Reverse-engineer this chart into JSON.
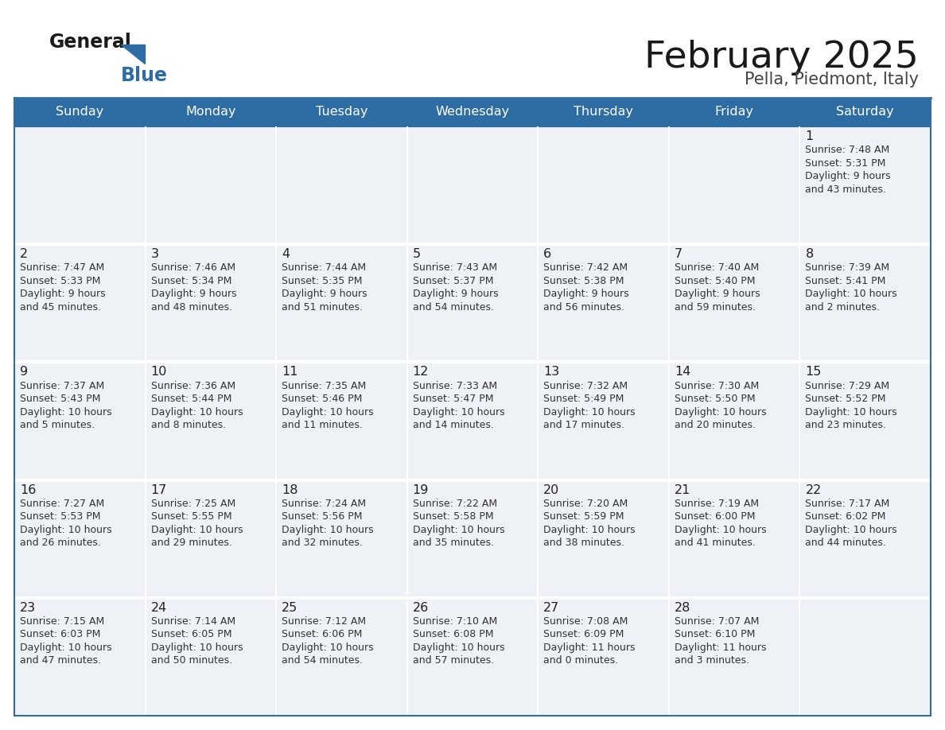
{
  "title": "February 2025",
  "subtitle": "Pella, Piedmont, Italy",
  "header_color": "#2e6da4",
  "header_text_color": "#ffffff",
  "cell_bg_color": "#eef1f5",
  "border_color": "#2e6da4",
  "text_color": "#333333",
  "days_of_week": [
    "Sunday",
    "Monday",
    "Tuesday",
    "Wednesday",
    "Thursday",
    "Friday",
    "Saturday"
  ],
  "calendar_data": [
    [
      null,
      null,
      null,
      null,
      null,
      null,
      {
        "day": "1",
        "sunrise": "7:48 AM",
        "sunset": "5:31 PM",
        "daylight": "9 hours",
        "daylight2": "and 43 minutes."
      }
    ],
    [
      {
        "day": "2",
        "sunrise": "7:47 AM",
        "sunset": "5:33 PM",
        "daylight": "9 hours",
        "daylight2": "and 45 minutes."
      },
      {
        "day": "3",
        "sunrise": "7:46 AM",
        "sunset": "5:34 PM",
        "daylight": "9 hours",
        "daylight2": "and 48 minutes."
      },
      {
        "day": "4",
        "sunrise": "7:44 AM",
        "sunset": "5:35 PM",
        "daylight": "9 hours",
        "daylight2": "and 51 minutes."
      },
      {
        "day": "5",
        "sunrise": "7:43 AM",
        "sunset": "5:37 PM",
        "daylight": "9 hours",
        "daylight2": "and 54 minutes."
      },
      {
        "day": "6",
        "sunrise": "7:42 AM",
        "sunset": "5:38 PM",
        "daylight": "9 hours",
        "daylight2": "and 56 minutes."
      },
      {
        "day": "7",
        "sunrise": "7:40 AM",
        "sunset": "5:40 PM",
        "daylight": "9 hours",
        "daylight2": "and 59 minutes."
      },
      {
        "day": "8",
        "sunrise": "7:39 AM",
        "sunset": "5:41 PM",
        "daylight": "10 hours",
        "daylight2": "and 2 minutes."
      }
    ],
    [
      {
        "day": "9",
        "sunrise": "7:37 AM",
        "sunset": "5:43 PM",
        "daylight": "10 hours",
        "daylight2": "and 5 minutes."
      },
      {
        "day": "10",
        "sunrise": "7:36 AM",
        "sunset": "5:44 PM",
        "daylight": "10 hours",
        "daylight2": "and 8 minutes."
      },
      {
        "day": "11",
        "sunrise": "7:35 AM",
        "sunset": "5:46 PM",
        "daylight": "10 hours",
        "daylight2": "and 11 minutes."
      },
      {
        "day": "12",
        "sunrise": "7:33 AM",
        "sunset": "5:47 PM",
        "daylight": "10 hours",
        "daylight2": "and 14 minutes."
      },
      {
        "day": "13",
        "sunrise": "7:32 AM",
        "sunset": "5:49 PM",
        "daylight": "10 hours",
        "daylight2": "and 17 minutes."
      },
      {
        "day": "14",
        "sunrise": "7:30 AM",
        "sunset": "5:50 PM",
        "daylight": "10 hours",
        "daylight2": "and 20 minutes."
      },
      {
        "day": "15",
        "sunrise": "7:29 AM",
        "sunset": "5:52 PM",
        "daylight": "10 hours",
        "daylight2": "and 23 minutes."
      }
    ],
    [
      {
        "day": "16",
        "sunrise": "7:27 AM",
        "sunset": "5:53 PM",
        "daylight": "10 hours",
        "daylight2": "and 26 minutes."
      },
      {
        "day": "17",
        "sunrise": "7:25 AM",
        "sunset": "5:55 PM",
        "daylight": "10 hours",
        "daylight2": "and 29 minutes."
      },
      {
        "day": "18",
        "sunrise": "7:24 AM",
        "sunset": "5:56 PM",
        "daylight": "10 hours",
        "daylight2": "and 32 minutes."
      },
      {
        "day": "19",
        "sunrise": "7:22 AM",
        "sunset": "5:58 PM",
        "daylight": "10 hours",
        "daylight2": "and 35 minutes."
      },
      {
        "day": "20",
        "sunrise": "7:20 AM",
        "sunset": "5:59 PM",
        "daylight": "10 hours",
        "daylight2": "and 38 minutes."
      },
      {
        "day": "21",
        "sunrise": "7:19 AM",
        "sunset": "6:00 PM",
        "daylight": "10 hours",
        "daylight2": "and 41 minutes."
      },
      {
        "day": "22",
        "sunrise": "7:17 AM",
        "sunset": "6:02 PM",
        "daylight": "10 hours",
        "daylight2": "and 44 minutes."
      }
    ],
    [
      {
        "day": "23",
        "sunrise": "7:15 AM",
        "sunset": "6:03 PM",
        "daylight": "10 hours",
        "daylight2": "and 47 minutes."
      },
      {
        "day": "24",
        "sunrise": "7:14 AM",
        "sunset": "6:05 PM",
        "daylight": "10 hours",
        "daylight2": "and 50 minutes."
      },
      {
        "day": "25",
        "sunrise": "7:12 AM",
        "sunset": "6:06 PM",
        "daylight": "10 hours",
        "daylight2": "and 54 minutes."
      },
      {
        "day": "26",
        "sunrise": "7:10 AM",
        "sunset": "6:08 PM",
        "daylight": "10 hours",
        "daylight2": "and 57 minutes."
      },
      {
        "day": "27",
        "sunrise": "7:08 AM",
        "sunset": "6:09 PM",
        "daylight": "11 hours",
        "daylight2": "and 0 minutes."
      },
      {
        "day": "28",
        "sunrise": "7:07 AM",
        "sunset": "6:10 PM",
        "daylight": "11 hours",
        "daylight2": "and 3 minutes."
      },
      null
    ]
  ]
}
